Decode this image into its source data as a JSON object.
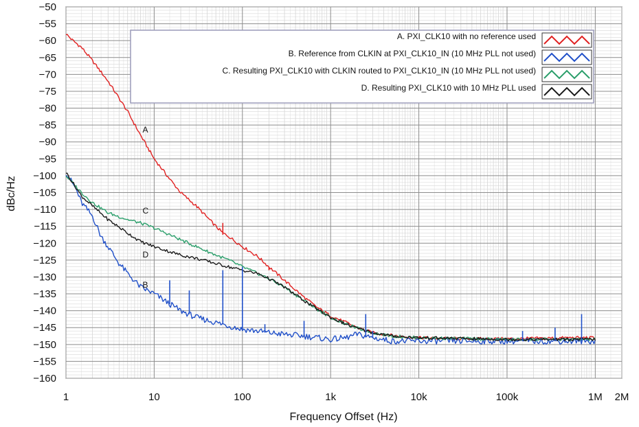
{
  "chart_data": {
    "type": "line",
    "x_scale": "log",
    "xlabel": "Frequency Offset (Hz)",
    "ylabel": "dBc/Hz",
    "xlim": [
      1,
      2000000
    ],
    "ylim": [
      -160,
      -50
    ],
    "grid": true,
    "legend_position": "top-right",
    "x_ticks": [
      {
        "value": 1,
        "label": "1"
      },
      {
        "value": 10,
        "label": "10"
      },
      {
        "value": 100,
        "label": "100"
      },
      {
        "value": 1000,
        "label": "1k"
      },
      {
        "value": 10000,
        "label": "10k"
      },
      {
        "value": 100000,
        "label": "100k"
      },
      {
        "value": 1000000,
        "label": "1M"
      },
      {
        "value": 2000000,
        "label": "2M"
      }
    ],
    "y_ticks": [
      {
        "value": -50,
        "label": "−50"
      },
      {
        "value": -55,
        "label": "−55"
      },
      {
        "value": -60,
        "label": "−60"
      },
      {
        "value": -65,
        "label": "−65"
      },
      {
        "value": -70,
        "label": "−70"
      },
      {
        "value": -75,
        "label": "−75"
      },
      {
        "value": -80,
        "label": "−80"
      },
      {
        "value": -85,
        "label": "−85"
      },
      {
        "value": -90,
        "label": "−90"
      },
      {
        "value": -95,
        "label": "−95"
      },
      {
        "value": -100,
        "label": "−100"
      },
      {
        "value": -105,
        "label": "−105"
      },
      {
        "value": -110,
        "label": "−110"
      },
      {
        "value": -115,
        "label": "−115"
      },
      {
        "value": -120,
        "label": "−120"
      },
      {
        "value": -125,
        "label": "−125"
      },
      {
        "value": -130,
        "label": "−130"
      },
      {
        "value": -135,
        "label": "−135"
      },
      {
        "value": -140,
        "label": "−140"
      },
      {
        "value": -145,
        "label": "−145"
      },
      {
        "value": -150,
        "label": "−150"
      },
      {
        "value": -155,
        "label": "−155"
      },
      {
        "value": -160,
        "label": "−160"
      }
    ],
    "series": [
      {
        "name": "A. PXI_CLK10 with no reference used",
        "label": "A",
        "label_at": [
          7,
          -88
        ],
        "color": "#e02020",
        "x": [
          1,
          1.2,
          1.5,
          2,
          3,
          5,
          7,
          10,
          15,
          20,
          30,
          50,
          60,
          70,
          100,
          150,
          200,
          300,
          500,
          700,
          1000,
          1500,
          2000,
          3000,
          5000,
          7000,
          10000,
          20000,
          50000,
          100000,
          200000,
          500000,
          1000000
        ],
        "y": [
          -58,
          -60,
          -62,
          -66,
          -72,
          -81,
          -88,
          -95,
          -101,
          -105,
          -109,
          -115,
          -117,
          -118,
          -121,
          -124,
          -127,
          -131,
          -136,
          -139,
          -141.5,
          -143.5,
          -145,
          -146.5,
          -147.3,
          -147.7,
          -148,
          -148.2,
          -148.3,
          -148.3,
          -148.2,
          -148,
          -148
        ]
      },
      {
        "name": "B. Reference from CLKIN at PXI_CLK10_IN (10 MHz PLL not used)",
        "label": "B",
        "label_at": [
          7,
          -134
        ],
        "color": "#1f4fc8",
        "x": [
          1,
          1.3,
          1.5,
          2,
          2.5,
          3,
          4,
          5,
          7,
          10,
          15,
          20,
          30,
          50,
          70,
          100,
          150,
          200,
          300,
          500,
          700,
          1000,
          1500,
          2000,
          3000,
          5000,
          10000,
          100000,
          1000000
        ],
        "y": [
          -99,
          -104,
          -108,
          -112,
          -118,
          -121,
          -126,
          -129,
          -133,
          -135,
          -138,
          -140,
          -142,
          -143.5,
          -144.5,
          -145.5,
          -146,
          -146.5,
          -147,
          -147.5,
          -148,
          -148.5,
          -148,
          -147,
          -148,
          -149,
          -149,
          -149,
          -149
        ]
      },
      {
        "name": "C. Resulting PXI_CLK10 with CLKIN routed to PXI_CLK10_IN (10 MHz PLL not used)",
        "label": "C",
        "label_at": [
          7,
          -112
        ],
        "color": "#2a9e6a",
        "x": [
          1,
          1.5,
          2,
          3,
          5,
          7,
          10,
          15,
          20,
          30,
          50,
          70,
          100,
          150,
          200,
          300,
          500,
          700,
          1000,
          1500,
          2000,
          3000,
          5000,
          10000,
          100000,
          1000000
        ],
        "y": [
          -100,
          -105,
          -108,
          -111,
          -113,
          -114,
          -115.5,
          -117.5,
          -119,
          -121,
          -123.5,
          -125,
          -127,
          -129,
          -130.5,
          -133,
          -137,
          -139.5,
          -142,
          -144,
          -145.2,
          -146.5,
          -147.5,
          -148,
          -148.5,
          -148.5
        ]
      },
      {
        "name": "D. Resulting PXI_CLK10 with 10 MHz PLL used",
        "label": "D",
        "label_at": [
          7,
          -125
        ],
        "color": "#1a1a1a",
        "x": [
          1,
          1.5,
          2,
          3,
          5,
          7,
          10,
          15,
          20,
          30,
          50,
          70,
          100,
          150,
          200,
          300,
          500,
          700,
          1000,
          1500,
          2000,
          3000,
          5000,
          10000,
          100000,
          1000000
        ],
        "y": [
          -99,
          -106,
          -109,
          -113,
          -117,
          -119.5,
          -121,
          -122.5,
          -123.5,
          -124.5,
          -126,
          -127,
          -128,
          -129,
          -130.5,
          -133,
          -137,
          -139.5,
          -142,
          -144,
          -145.2,
          -146.5,
          -147.5,
          -148,
          -148.5,
          -148.5
        ]
      }
    ],
    "spurs": [
      {
        "series": 0,
        "x": 60,
        "y_top": -114,
        "y_base": -117.5
      },
      {
        "series": 0,
        "x": 200,
        "y_top": -128,
        "y_base": -127
      },
      {
        "series": 1,
        "x": 15,
        "y_top": -131,
        "y_base": -138
      },
      {
        "series": 1,
        "x": 25,
        "y_top": -134,
        "y_base": -141
      },
      {
        "series": 1,
        "x": 60,
        "y_top": -128,
        "y_base": -143.8
      },
      {
        "series": 1,
        "x": 100,
        "y_top": -127,
        "y_base": -145.5
      },
      {
        "series": 1,
        "x": 180,
        "y_top": -144,
        "y_base": -146.5
      },
      {
        "series": 1,
        "x": 500,
        "y_top": -143,
        "y_base": -147.5
      },
      {
        "series": 1,
        "x": 2500,
        "y_top": -141,
        "y_base": -147.5
      },
      {
        "series": 1,
        "x": 3000,
        "y_top": -146,
        "y_base": -148
      },
      {
        "series": 1,
        "x": 150000,
        "y_top": -146,
        "y_base": -149
      },
      {
        "series": 1,
        "x": 350000,
        "y_top": -145,
        "y_base": -149
      },
      {
        "series": 1,
        "x": 700000,
        "y_top": -141,
        "y_base": -149
      }
    ]
  }
}
